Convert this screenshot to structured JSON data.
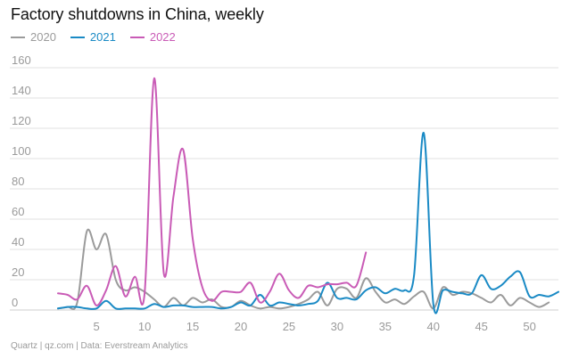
{
  "title": "Factory shutdowns in China, weekly",
  "source": "Quartz | qz.com | Data: Everstream Analytics",
  "colors": {
    "2020": "#9b9b9b",
    "2021": "#1a8ac5",
    "2022": "#c95bb6",
    "grid": "#e2e2e2",
    "tick": "#9a9a9a"
  },
  "chart_data": {
    "type": "line",
    "title": "Factory shutdowns in China, weekly",
    "xlabel": "",
    "ylabel": "",
    "xlim": [
      1,
      53
    ],
    "ylim": [
      0,
      160
    ],
    "xticks": [
      5,
      10,
      15,
      20,
      25,
      30,
      35,
      40,
      45,
      50
    ],
    "yticks": [
      0,
      20,
      40,
      60,
      80,
      100,
      120,
      140,
      160
    ],
    "grid": "horizontal",
    "legend": "top-left",
    "series": [
      {
        "name": "2020",
        "color": "#9b9b9b",
        "x": [
          1,
          2,
          3,
          4,
          5,
          6,
          7,
          8,
          9,
          10,
          11,
          12,
          13,
          14,
          15,
          16,
          17,
          18,
          19,
          20,
          21,
          22,
          23,
          24,
          25,
          26,
          27,
          28,
          29,
          30,
          31,
          32,
          33,
          34,
          35,
          36,
          37,
          38,
          39,
          40,
          41,
          42,
          43,
          44,
          45,
          46,
          47,
          48,
          49,
          50,
          51,
          52
        ],
        "values": [
          1,
          2,
          5,
          52,
          40,
          50,
          20,
          13,
          15,
          12,
          7,
          2,
          8,
          3,
          8,
          5,
          7,
          2,
          2,
          6,
          3,
          1,
          2,
          1,
          2,
          4,
          7,
          12,
          3,
          14,
          14,
          8,
          21,
          12,
          5,
          7,
          4,
          9,
          12,
          1,
          15,
          10,
          12,
          11,
          8,
          5,
          10,
          3,
          8,
          5,
          2,
          5
        ]
      },
      {
        "name": "2021",
        "color": "#1a8ac5",
        "x": [
          1,
          2,
          3,
          4,
          5,
          6,
          7,
          8,
          9,
          10,
          11,
          12,
          13,
          14,
          15,
          16,
          17,
          18,
          19,
          20,
          21,
          22,
          23,
          24,
          25,
          26,
          27,
          28,
          29,
          30,
          31,
          32,
          33,
          34,
          35,
          36,
          37,
          38,
          39,
          40,
          41,
          42,
          43,
          44,
          45,
          46,
          47,
          48,
          49,
          50,
          51,
          52,
          53
        ],
        "values": [
          1,
          2,
          2,
          1,
          1,
          6,
          1,
          1,
          1,
          1,
          4,
          2,
          3,
          3,
          2,
          2,
          2,
          1,
          2,
          5,
          3,
          10,
          3,
          5,
          4,
          3,
          4,
          6,
          18,
          8,
          8,
          7,
          13,
          15,
          11,
          14,
          13,
          23,
          117,
          4,
          13,
          12,
          11,
          11,
          23,
          14,
          16,
          22,
          25,
          9,
          10,
          9,
          12
        ]
      },
      {
        "name": "2022",
        "color": "#c95bb6",
        "x": [
          1,
          2,
          3,
          4,
          5,
          6,
          7,
          8,
          9,
          10,
          11,
          12,
          13,
          14,
          15,
          16,
          17,
          18,
          19,
          20,
          21,
          22,
          23,
          24,
          25,
          26,
          27,
          28,
          29,
          30,
          31,
          32,
          33
        ],
        "values": [
          11,
          10,
          7,
          16,
          3,
          13,
          29,
          9,
          22,
          11,
          153,
          24,
          75,
          106,
          47,
          15,
          6,
          12,
          12,
          12,
          18,
          5,
          12,
          24,
          13,
          8,
          16,
          15,
          17,
          17,
          18,
          16,
          38
        ]
      }
    ]
  }
}
